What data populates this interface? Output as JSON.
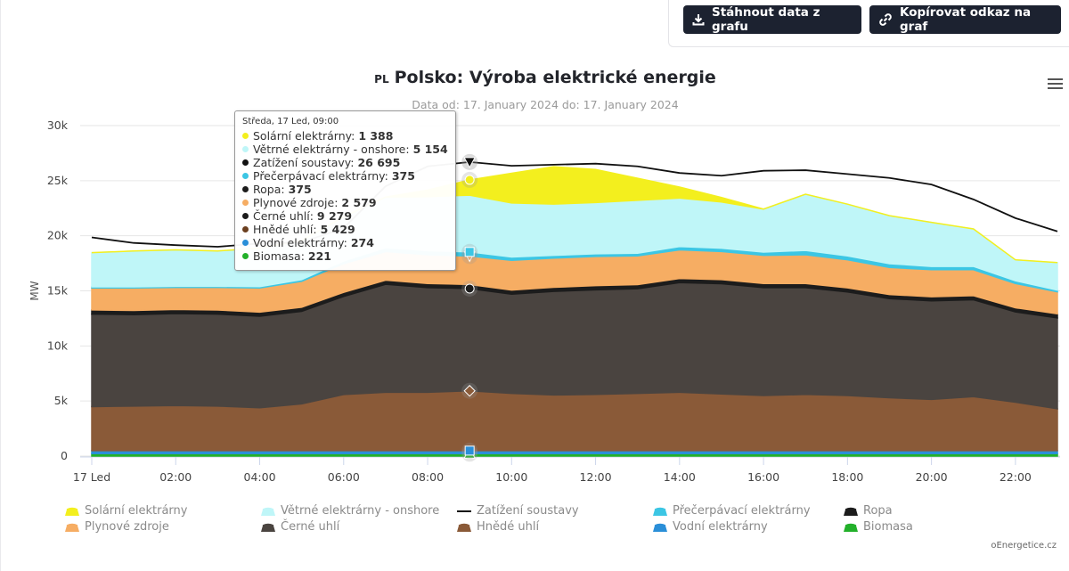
{
  "toolbar": {
    "download_label": "Stáhnout data z grafu",
    "copy_label": "Kopírovat odkaz na graf"
  },
  "header": {
    "flag_code": "PL",
    "title": "Polsko: Výroba elektrické energie",
    "subtitle": "Data od: 17. January 2024 do: 17. January 2024"
  },
  "credit": "oEnergetice.cz",
  "chart_data": {
    "type": "area",
    "stacked": true,
    "grid": "horizontal",
    "legend_position": "bottom",
    "ylabel": "MW",
    "ylim": [
      0,
      30000
    ],
    "yticks": [
      0,
      5000,
      10000,
      15000,
      20000,
      25000,
      30000
    ],
    "ytick_labels": [
      "0",
      "5k",
      "10k",
      "15k",
      "20k",
      "25k",
      "30k"
    ],
    "x_hours": [
      0,
      1,
      2,
      3,
      4,
      5,
      6,
      7,
      8,
      9,
      10,
      11,
      12,
      13,
      14,
      15,
      16,
      17,
      18,
      19,
      20,
      21,
      22,
      23
    ],
    "xtick_hours": [
      0,
      2,
      4,
      6,
      8,
      10,
      12,
      14,
      16,
      18,
      20,
      22
    ],
    "xtick_labels": [
      "17 Led",
      "02:00",
      "04:00",
      "06:00",
      "08:00",
      "10:00",
      "12:00",
      "14:00",
      "16:00",
      "18:00",
      "20:00",
      "22:00"
    ],
    "series": [
      {
        "name": "Biomasa",
        "color": "#22b02a",
        "values": [
          221,
          221,
          221,
          221,
          221,
          221,
          221,
          221,
          221,
          221,
          221,
          221,
          221,
          221,
          221,
          221,
          221,
          221,
          221,
          221,
          221,
          221,
          221,
          221
        ]
      },
      {
        "name": "Vodní elektrárny",
        "color": "#2a8fd8",
        "values": [
          270,
          270,
          270,
          270,
          270,
          270,
          272,
          272,
          274,
          274,
          274,
          274,
          274,
          274,
          274,
          274,
          274,
          274,
          274,
          274,
          272,
          272,
          270,
          270
        ]
      },
      {
        "name": "Hnědé uhlí",
        "color": "#8a5a38",
        "values": [
          4000,
          4050,
          4100,
          4050,
          3900,
          4250,
          5100,
          5300,
          5300,
          5430,
          5200,
          5050,
          5100,
          5200,
          5300,
          5150,
          5000,
          5100,
          5000,
          4800,
          4650,
          4900,
          4400,
          3800
        ]
      },
      {
        "name": "Černé uhlí",
        "color": "#4a4440",
        "values": [
          8400,
          8300,
          8350,
          8350,
          8300,
          8400,
          8900,
          9800,
          9500,
          9280,
          9000,
          9400,
          9500,
          9500,
          9950,
          10000,
          9800,
          9700,
          9400,
          9000,
          8950,
          8800,
          8200,
          8250
        ]
      },
      {
        "name": "Ropa",
        "color": "#1c1c1c",
        "values": [
          375,
          375,
          375,
          375,
          375,
          375,
          375,
          375,
          375,
          375,
          375,
          375,
          375,
          375,
          375,
          375,
          375,
          375,
          375,
          375,
          375,
          375,
          375,
          375
        ]
      },
      {
        "name": "Plynové zdroje",
        "color": "#f6ad63",
        "values": [
          2000,
          2050,
          2000,
          2050,
          2200,
          2350,
          2600,
          2600,
          2600,
          2580,
          2700,
          2650,
          2650,
          2600,
          2600,
          2550,
          2550,
          2600,
          2550,
          2450,
          2450,
          2350,
          2200,
          2000
        ]
      },
      {
        "name": "Přečerpávací elektrárny",
        "color": "#3cc6e4",
        "values": [
          100,
          100,
          100,
          100,
          120,
          150,
          250,
          350,
          375,
          375,
          300,
          250,
          250,
          250,
          300,
          300,
          300,
          400,
          350,
          350,
          300,
          300,
          250,
          150
        ]
      },
      {
        "name": "Větrné elektrárny - onshore",
        "color": "#bff6f8",
        "values": [
          3100,
          3250,
          3300,
          3200,
          3500,
          3550,
          4000,
          4600,
          4900,
          5150,
          4900,
          4650,
          4650,
          4800,
          4400,
          4200,
          3900,
          5100,
          4700,
          4350,
          4000,
          3400,
          1900,
          2500
        ]
      },
      {
        "name": "Solární elektrárny",
        "color": "#f3ef1e",
        "values": [
          0,
          0,
          0,
          0,
          0,
          0,
          0,
          0,
          600,
          1388,
          2700,
          3400,
          3000,
          2000,
          1000,
          400,
          0,
          0,
          0,
          0,
          0,
          0,
          0,
          0
        ]
      },
      {
        "name": "Zatížení soustavy",
        "color": "#111111",
        "type": "line",
        "values": [
          19850,
          19350,
          19150,
          19000,
          19300,
          19400,
          20700,
          24500,
          26300,
          26695,
          26350,
          26450,
          26550,
          26300,
          25700,
          25450,
          25900,
          25950,
          25600,
          25250,
          24650,
          23300,
          21600,
          20400
        ]
      }
    ],
    "legend_order": [
      "Solární elektrárny",
      "Větrné elektrárny - onshore",
      "Zatížení soustavy",
      "Přečerpávací elektrárny",
      "Ropa",
      "Plynové zdroje",
      "Černé uhlí",
      "Hnědé uhlí",
      "Vodní elektrárny",
      "Biomasa"
    ],
    "tooltip": {
      "x_hour": 9,
      "header": "Středa, 17 Led, 09:00",
      "rows": [
        {
          "name": "Solární elektrárny",
          "value": "1 388",
          "color": "#f3ef1e"
        },
        {
          "name": "Větrné elektrárny - onshore",
          "value": "5 154",
          "color": "#bff6f8"
        },
        {
          "name": "Zatížení soustavy",
          "value": "26 695",
          "color": "#111111"
        },
        {
          "name": "Přečerpávací elektrárny",
          "value": "375",
          "color": "#3cc6e4"
        },
        {
          "name": "Ropa",
          "value": "375",
          "color": "#1c1c1c"
        },
        {
          "name": "Plynové zdroje",
          "value": "2 579",
          "color": "#f6ad63"
        },
        {
          "name": "Černé uhlí",
          "value": "9 279",
          "color": "#1c1c1c"
        },
        {
          "name": "Hnědé uhlí",
          "value": "5 429",
          "color": "#6b3f1f"
        },
        {
          "name": "Vodní elektrárny",
          "value": "274",
          "color": "#2a8fd8"
        },
        {
          "name": "Biomasa",
          "value": "221",
          "color": "#22b02a"
        }
      ]
    }
  }
}
